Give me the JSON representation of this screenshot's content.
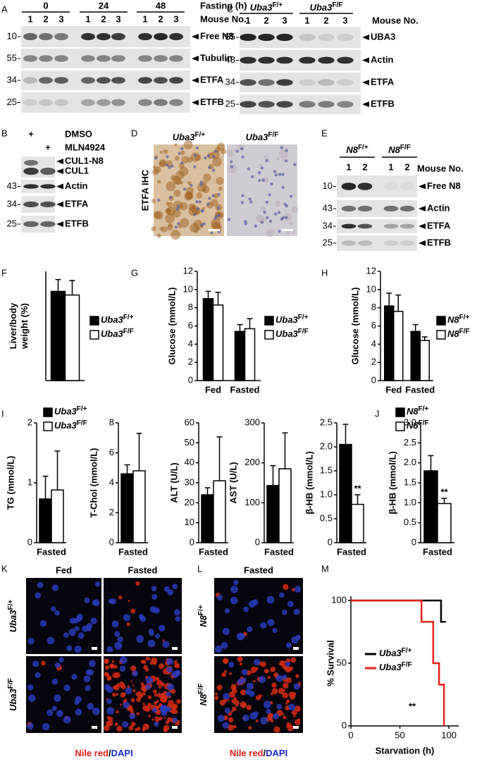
{
  "panel_letters": [
    "A",
    "B",
    "C",
    "D",
    "E",
    "F",
    "G",
    "H",
    "I",
    "J",
    "K",
    "L",
    "M"
  ],
  "blots": {
    "A": {
      "timepoints": [
        "0",
        "24",
        "48"
      ],
      "time_label": "Fasting (h)",
      "mouse_numbers": [
        "1",
        "2",
        "3",
        "1",
        "2",
        "3",
        "1",
        "2",
        "3"
      ],
      "mouse_label": "Mouse No.",
      "bands": [
        {
          "mw": "10",
          "label": "Free N8"
        },
        {
          "mw": "55",
          "label": "Tubulin"
        },
        {
          "mw": "34",
          "label": "ETFA"
        },
        {
          "mw": "25",
          "label": "ETFB"
        }
      ]
    },
    "B": {
      "treatments": [
        {
          "mark": "+",
          "label": "DMSO"
        },
        {
          "mark": "+",
          "label": "MLN4924"
        }
      ],
      "bands": [
        {
          "labels": [
            "CUL1-N8",
            "CUL1"
          ]
        },
        {
          "mw": "43",
          "label": "Actin"
        },
        {
          "mw": "34",
          "label": "ETFA"
        },
        {
          "mw": "25",
          "label": "ETFB"
        }
      ]
    },
    "C": {
      "genotypes": [
        {
          "gene": "Uba3",
          "allele": "F/+"
        },
        {
          "gene": "Uba3",
          "allele": "F/F"
        }
      ],
      "mouse_numbers": [
        "1",
        "2",
        "3",
        "1",
        "2",
        "3"
      ],
      "mouse_label": "Mouse No.",
      "bands": [
        {
          "mw": "55",
          "label": "UBA3"
        },
        {
          "mw": "43",
          "label": "Actin"
        },
        {
          "mw": "34",
          "label": "ETFA"
        },
        {
          "mw": "25",
          "label": "ETFB"
        }
      ]
    },
    "E": {
      "genotypes": [
        {
          "gene": "N8",
          "allele": "F/+"
        },
        {
          "gene": "N8",
          "allele": "F/F"
        }
      ],
      "mouse_numbers": [
        "1",
        "2",
        "1",
        "2"
      ],
      "mouse_label": "Mouse No.",
      "bands": [
        {
          "mw": "10",
          "label": "Free N8"
        },
        {
          "mw": "43",
          "label": "Actin"
        },
        {
          "mw": "34",
          "label": "ETFA"
        },
        {
          "mw": "25",
          "label": "ETFB"
        }
      ]
    }
  },
  "ihc": {
    "label": "ETFA IHC",
    "genotypes": [
      {
        "gene": "Uba3",
        "allele": "F/+"
      },
      {
        "gene": "Uba3",
        "allele": "F/F"
      }
    ]
  },
  "microscopy": {
    "K": {
      "columns": [
        "Fed",
        "Fasted"
      ],
      "rows": [
        {
          "gene": "Uba3",
          "allele": "F/+"
        },
        {
          "gene": "Uba3",
          "allele": "F/F"
        }
      ],
      "stain": [
        "Nile red",
        "/",
        "DAPI"
      ]
    },
    "L": {
      "columns": [
        "Fasted"
      ],
      "rows": [
        {
          "gene": "N8",
          "allele": "F/+"
        },
        {
          "gene": "N8",
          "allele": "F/F"
        }
      ],
      "stain": [
        "Nile red",
        "/",
        "DAPI"
      ]
    }
  },
  "chart_data": [
    {
      "type": "bar",
      "ylabel": [
        "Liver/body",
        "weight (%)"
      ],
      "ylim": [
        0,
        6
      ],
      "series": [
        {
          "name": "Uba3",
          "allele": "F/+",
          "color": "#000000",
          "values": [
            4.9
          ],
          "errors": [
            0.65
          ]
        },
        {
          "name": "Uba3",
          "allele": "F/F",
          "color": "#ffffff",
          "values": [
            4.7
          ],
          "errors": [
            0.8
          ]
        }
      ]
    },
    {
      "type": "bar",
      "ylabel": "Glucose (mmol/L)",
      "categories": [
        "Fed",
        "Fasted"
      ],
      "ylim": [
        0,
        12
      ],
      "yticks": [
        0,
        2,
        4,
        6,
        8,
        10,
        12
      ],
      "series": [
        {
          "name": "Uba3",
          "allele": "F/+",
          "color": "#000000",
          "values": [
            9.0,
            5.4
          ],
          "errors": [
            0.8,
            0.75
          ]
        },
        {
          "name": "Uba3",
          "allele": "F/F",
          "color": "#ffffff",
          "values": [
            8.3,
            5.7
          ],
          "errors": [
            1.4,
            1.1
          ]
        }
      ]
    },
    {
      "type": "bar",
      "ylabel": "Glucose (mmol/L)",
      "categories": [
        "Fed",
        "Fasted"
      ],
      "ylim": [
        0,
        12
      ],
      "yticks": [
        0,
        2,
        4,
        6,
        8,
        10,
        12
      ],
      "series": [
        {
          "name": "N8",
          "allele": "F/+",
          "color": "#000000",
          "values": [
            8.2,
            5.4
          ],
          "errors": [
            1.4,
            0.75
          ]
        },
        {
          "name": "N8",
          "allele": "F/F",
          "color": "#ffffff",
          "values": [
            7.6,
            4.4
          ],
          "errors": [
            1.8,
            0.4
          ]
        }
      ]
    },
    {
      "type": "bar",
      "ylabel": "TG (mmol/L)",
      "categories": [
        "Fasted"
      ],
      "ylim": [
        0,
        2
      ],
      "yticks": [
        0,
        1,
        2
      ],
      "series": [
        {
          "name": "Uba3",
          "allele": "F/+",
          "color": "#000000",
          "values": [
            0.73
          ],
          "errors": [
            0.38
          ]
        },
        {
          "name": "Uba3",
          "allele": "F/F",
          "color": "#ffffff",
          "values": [
            0.88
          ],
          "errors": [
            0.65
          ]
        }
      ]
    },
    {
      "type": "bar",
      "ylabel": "T-Chol (mmol/L)",
      "categories": [
        "Fasted"
      ],
      "ylim": [
        0,
        8
      ],
      "yticks": [
        0,
        2,
        4,
        6,
        8
      ],
      "series": [
        {
          "color": "#000000",
          "values": [
            4.6
          ],
          "errors": [
            0.6
          ]
        },
        {
          "color": "#ffffff",
          "values": [
            4.8
          ],
          "errors": [
            2.5
          ]
        }
      ]
    },
    {
      "type": "bar",
      "ylabel": "ALT (U/L)",
      "categories": [
        "Fasted"
      ],
      "ylim": [
        0,
        60
      ],
      "yticks": [
        0,
        10,
        20,
        30,
        40,
        50,
        60
      ],
      "series": [
        {
          "color": "#000000",
          "values": [
            24
          ],
          "errors": [
            3.5
          ]
        },
        {
          "color": "#ffffff",
          "values": [
            31
          ],
          "errors": [
            22
          ]
        }
      ]
    },
    {
      "type": "bar",
      "ylabel": "AST (U/L)",
      "categories": [
        "Fasted"
      ],
      "ylim": [
        0,
        300
      ],
      "yticks": [
        0,
        100,
        200,
        300
      ],
      "series": [
        {
          "color": "#000000",
          "values": [
            143
          ],
          "errors": [
            50
          ]
        },
        {
          "color": "#ffffff",
          "values": [
            185
          ],
          "errors": [
            90
          ]
        }
      ]
    },
    {
      "type": "bar",
      "ylabel": "β-HB (mmol/L)",
      "categories": [
        "Fasted"
      ],
      "ylim": [
        0,
        2.5
      ],
      "yticks": [
        0,
        0.5,
        {
          "value": 1,
          "label": "1.0"
        },
        1.5,
        {
          "value": 2,
          "label": "2.0"
        },
        2.5
      ],
      "annotation": "**",
      "series": [
        {
          "color": "#000000",
          "values": [
            2.05
          ],
          "errors": [
            0.42
          ]
        },
        {
          "color": "#ffffff",
          "values": [
            0.8
          ],
          "errors": [
            0.2
          ]
        }
      ]
    },
    {
      "type": "bar",
      "ylabel": "β-HB (mmol/L)",
      "categories": [
        "Fasted"
      ],
      "ylim": [
        0,
        3
      ],
      "yticks": [
        0,
        0.5,
        {
          "value": 1,
          "label": "1.0"
        },
        1.5,
        {
          "value": 2,
          "label": "2.0"
        },
        2.5,
        {
          "value": 3,
          "label": "3.0"
        }
      ],
      "annotation": "**",
      "series": [
        {
          "name": "N8",
          "allele": "F/+",
          "color": "#000000",
          "values": [
            1.8
          ],
          "errors": [
            0.38
          ]
        },
        {
          "name": "N8",
          "allele": "F/F",
          "color": "#ffffff",
          "values": [
            0.98
          ],
          "errors": [
            0.13
          ]
        }
      ]
    },
    {
      "type": "line",
      "ylabel": "% Survival",
      "xlabel": "Starvation (h)",
      "xlim": [
        0,
        110
      ],
      "xticks": [
        0,
        50,
        100
      ],
      "ylim": [
        0,
        100
      ],
      "yticks": [
        0,
        50,
        100
      ],
      "annotation": "**",
      "series": [
        {
          "name": "Uba3",
          "allele": "F/+",
          "color": "#000000",
          "x": [
            0,
            92,
            92,
            97
          ],
          "values": [
            100,
            100,
            83,
            83
          ]
        },
        {
          "name": "Uba3",
          "allele": "F/F",
          "color": "#e8221b",
          "x": [
            0,
            72,
            72,
            84,
            84,
            90,
            90,
            95,
            95
          ],
          "values": [
            100,
            100,
            83,
            83,
            50,
            50,
            33,
            33,
            0
          ]
        }
      ]
    }
  ]
}
